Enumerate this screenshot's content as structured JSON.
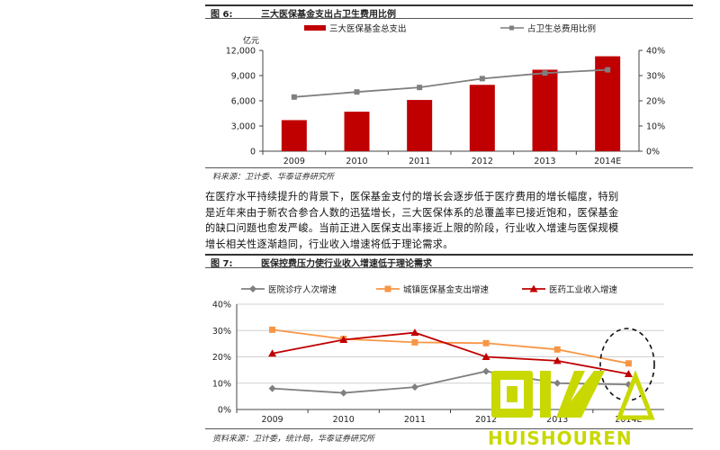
{
  "figure6": {
    "number": "图 6:",
    "title": "三大医保基金支出占卫生费用比例",
    "source": "料来源：卫计委、华泰证券研究所"
  },
  "figure7": {
    "number": "图 7:",
    "title": "医保控费压力使行业收入增速低于理论需求",
    "source": "资料来源：卫计委，统计局，华泰证券研究所"
  },
  "paragraph": [
    "在医疗水平持续提升的背景下，医保基金支付的增长会逐步低于医疗费用的增长幅度，特别",
    "是近年来由于新农合参合人数的迅猛增长，三大医保体系的总覆盖率已接近饱和，医保基金",
    "的缺口问题也愈发严峻。当前正进入医保支出率接近上限的阶段，行业收入增速与医保规模",
    "增长相关性逐渐趋同，行业收入增速将低于理论需求。"
  ],
  "watermark": {
    "text": "HUISHOUREN",
    "color": "#c9d800"
  },
  "colors": {
    "bar": "#c00000",
    "share_line": "#7f7f7f",
    "visits_line": "#808080",
    "fund_line": "#f79646",
    "revenue_line": "#c00000"
  },
  "chart_data": [
    {
      "type": "bar",
      "unit_label": "亿元",
      "categories": [
        "2009",
        "2010",
        "2011",
        "2012",
        "2013",
        "2014E"
      ],
      "left_ticks": [
        "0",
        "3,000",
        "6,000",
        "9,000",
        "12,000"
      ],
      "right_ticks": [
        "0%",
        "10%",
        "20%",
        "30%",
        "40%"
      ],
      "ylim": [
        0,
        12000
      ],
      "y2lim": [
        0,
        40
      ],
      "series": [
        {
          "name": "三大医保基金总支出",
          "type": "bar",
          "axis": "left",
          "values": [
            3700,
            4700,
            6100,
            7900,
            9700,
            11300
          ]
        },
        {
          "name": "占卫生总费用比例",
          "type": "line",
          "axis": "right",
          "values": [
            21.5,
            23.5,
            25.3,
            28.8,
            31.0,
            32.3
          ]
        }
      ],
      "legend_position": "top",
      "grid": false
    },
    {
      "type": "line",
      "categories": [
        "2009",
        "2010",
        "2011",
        "2012",
        "2013",
        "2014E"
      ],
      "y_ticks": [
        "0%",
        "10%",
        "20%",
        "30%",
        "40%"
      ],
      "ylim": [
        0,
        40
      ],
      "series": [
        {
          "name": "医院诊疗人次增速",
          "values": [
            8.0,
            6.3,
            8.5,
            14.5,
            10.0,
            9.5
          ]
        },
        {
          "name": "城镇医保基金支出增速",
          "values": [
            30.3,
            26.8,
            25.5,
            25.2,
            22.8,
            17.5
          ]
        },
        {
          "name": "医药工业收入增速",
          "values": [
            21.3,
            26.5,
            29.2,
            20.0,
            18.5,
            13.5
          ]
        }
      ],
      "legend_position": "top",
      "grid": true
    }
  ]
}
